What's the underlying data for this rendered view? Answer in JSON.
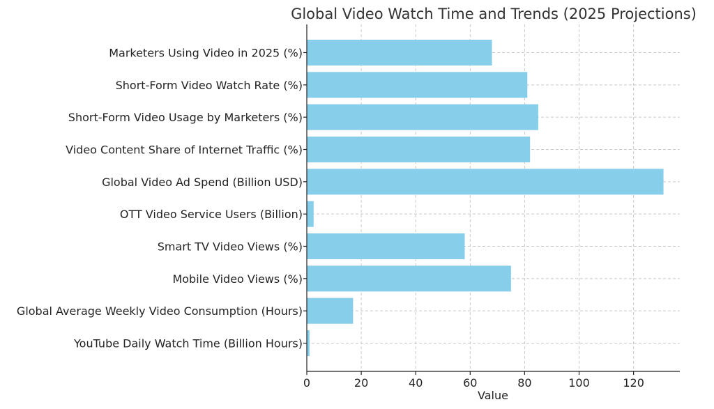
{
  "chart_data": {
    "type": "bar",
    "orientation": "horizontal",
    "title": "Global Video Watch Time and Trends (2025 Projections)",
    "xlabel": "Value",
    "ylabel": "",
    "xlim": [
      0,
      137
    ],
    "xticks": [
      0,
      20,
      40,
      60,
      80,
      100,
      120
    ],
    "grid": true,
    "bar_color": "#87CEEB",
    "categories": [
      "YouTube Daily Watch Time (Billion Hours)",
      "Global Average Weekly Video Consumption (Hours)",
      "Mobile Video Views (%)",
      "Smart TV Video Views (%)",
      "OTT Video Service Users (Billion)",
      "Global Video Ad Spend (Billion USD)",
      "Video Content Share of Internet Traffic (%)",
      "Short-Form Video Usage by Marketers (%)",
      "Short-Form Video Watch Rate (%)",
      "Marketers Using Video in 2025 (%)"
    ],
    "values": [
      1,
      17,
      75,
      58,
      2.5,
      131,
      82,
      85,
      81,
      68
    ]
  }
}
